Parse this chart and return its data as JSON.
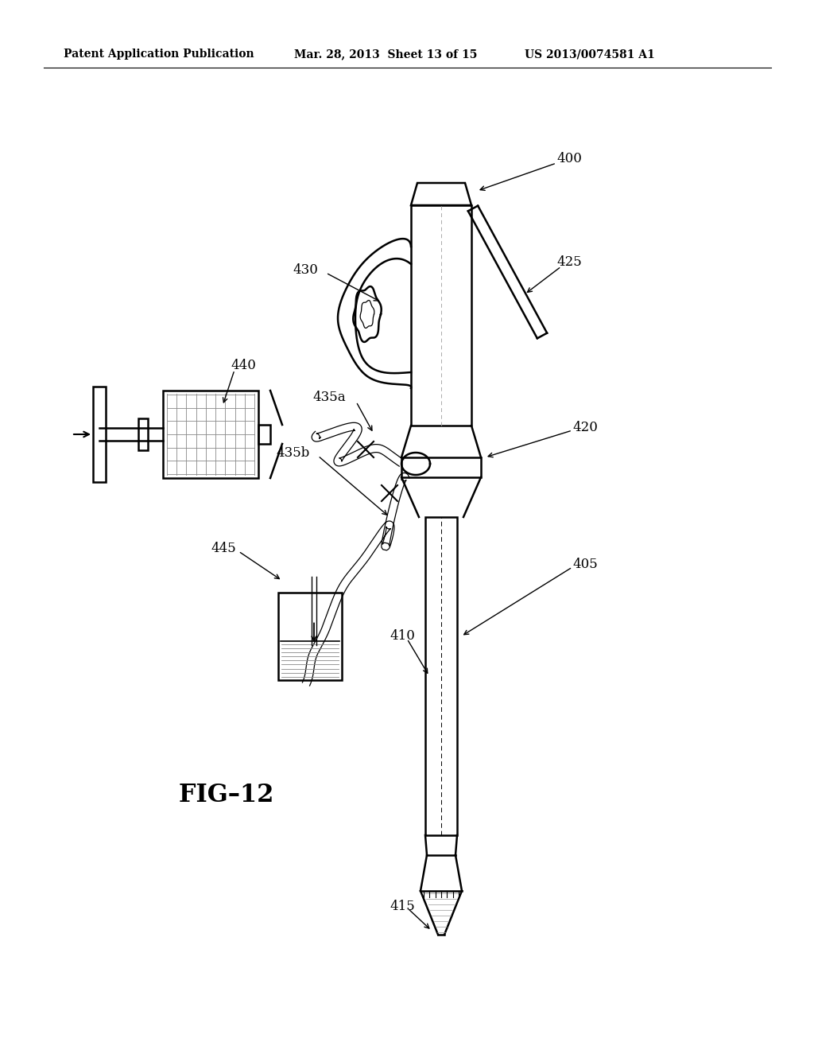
{
  "bg_color": "#ffffff",
  "header_left": "Patent Application Publication",
  "header_mid": "Mar. 28, 2013  Sheet 13 of 15",
  "header_right": "US 2013/0074581 A1",
  "fig_label": "FIG-12"
}
